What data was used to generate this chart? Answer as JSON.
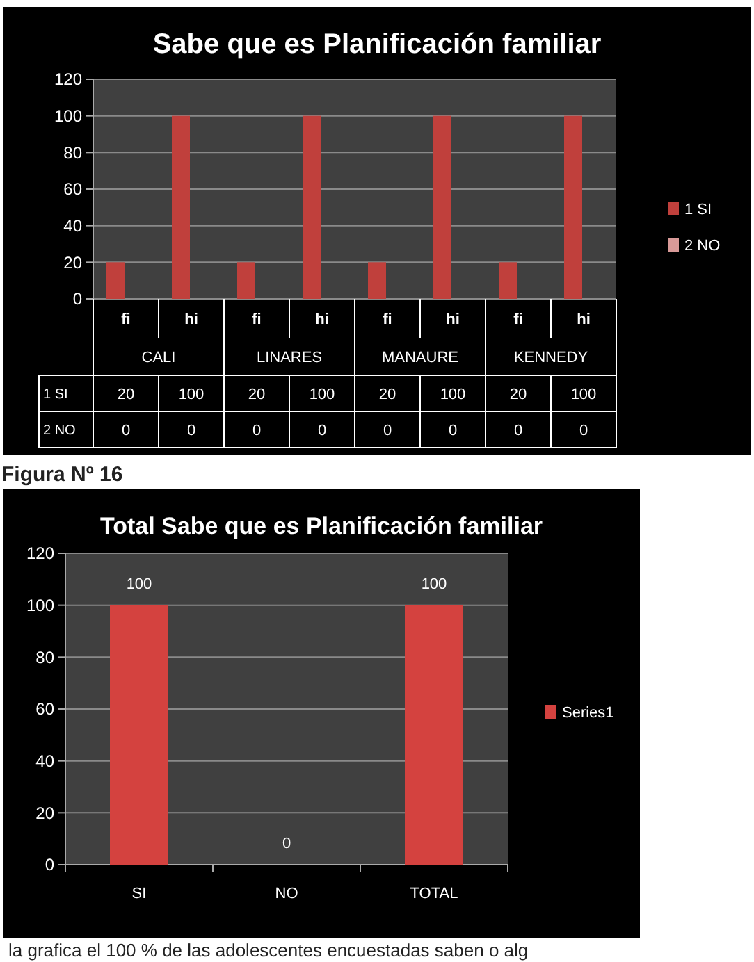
{
  "chart_data": [
    {
      "type": "bar",
      "title": "Sabe que es Planificación familiar",
      "categories": [
        "fi",
        "hi",
        "fi",
        "hi",
        "fi",
        "hi",
        "fi",
        "hi"
      ],
      "series": [
        {
          "name": "1 SI",
          "color": "#c0403c",
          "values": [
            20,
            100,
            20,
            100,
            20,
            100,
            20,
            100
          ]
        },
        {
          "name": "2 NO",
          "color": "#d89a98",
          "values": [
            0,
            0,
            0,
            0,
            0,
            0,
            0,
            0
          ]
        }
      ],
      "annotations": [
        "CALI",
        "LINARES",
        "MANAURE",
        "KENNEDY"
      ],
      "ylim": [
        0,
        120
      ],
      "yticks": [
        0,
        20,
        40,
        60,
        80,
        100,
        120
      ],
      "grid": "y",
      "legend": "right",
      "data_labels": true
    },
    {
      "type": "bar",
      "title": "Total Sabe que es Planificación familiar",
      "categories": [
        "SI",
        "NO",
        "TOTAL"
      ],
      "series": [
        {
          "name": "Series1",
          "color": "#d4423f",
          "values": [
            100,
            0,
            100
          ]
        }
      ],
      "annotations": [
        "Figura Nº 16",
        "la grafica el 100 % de las adolescentes encuestadas saben o alg"
      ],
      "ylim": [
        0,
        120
      ],
      "yticks": [
        0,
        20,
        40,
        60,
        80,
        100,
        120
      ],
      "grid": "y",
      "legend": "right",
      "data_labels": true
    }
  ]
}
